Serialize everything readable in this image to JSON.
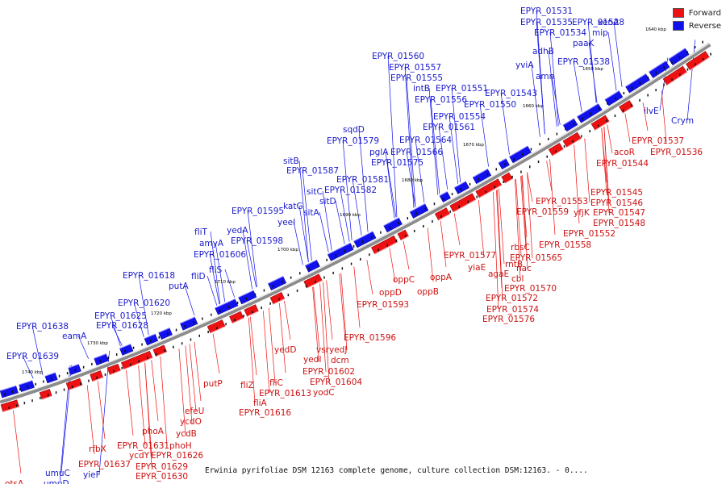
{
  "caption": "Erwinia pyrifoliae DSM 12163 complete genome, culture collection DSM:12163. - 0....",
  "legend": [
    {
      "label": "Forward",
      "color": "#ee1111"
    },
    {
      "label": "Reverse",
      "color": "#1111ee"
    }
  ],
  "colors": {
    "forward": "#ee1111",
    "reverse": "#1111ee",
    "backbone": "#8c8c8c"
  },
  "scale_ticks": [
    "1640 kbp",
    "1650 kbp",
    "1660 kbp",
    "1670 kbp",
    "1680 kbp",
    "1690 kbp",
    "1700 kbp",
    "1710 kbp",
    "1720 kbp",
    "1730 kbp",
    "1740 kbp"
  ],
  "reverse_genes": [
    "EPYR_01531",
    "EPYR_01535",
    "EPYR_01528",
    "xenA",
    "EPYR_01534",
    "mip",
    "paaK",
    "adhB",
    "yviA",
    "EPYR_01538",
    "amn",
    "EPYR_01560",
    "EPYR_01557",
    "EPYR_01555",
    "intB",
    "EPYR_01551",
    "EPYR_01556",
    "EPYR_01543",
    "EPYR_01550",
    "EPYR_01554",
    "EPYR_01561",
    "sqdD",
    "EPYR_01579",
    "EPYR_01564",
    "pglA",
    "EPYR_01566",
    "EPYR_01575",
    "sitB",
    "EPYR_01587",
    "EPYR_01581",
    "sitC",
    "EPYR_01582",
    "sitD",
    "katG",
    "EPYR_01595",
    "sitA",
    "yeeI",
    "fliT",
    "yedA",
    "amyA",
    "EPYR_01598",
    "EPYR_01606",
    "fliS",
    "fliD",
    "EPYR_01618",
    "putA",
    "EPYR_01620",
    "EPYR_01625",
    "EPYR_01638",
    "EPYR_01628",
    "eamA",
    "EPYR_01639",
    "ilvE",
    "Crym",
    "umuC",
    "umuD",
    "yieF"
  ],
  "forward_genes": [
    "EPYR_01537",
    "EPYR_01536",
    "acoR",
    "EPYR_01544",
    "EPYR_01545",
    "EPYR_01546",
    "EPYR_01553",
    "EPYR_01547",
    "EPYR_01559",
    "yfjK",
    "EPYR_01548",
    "EPYR_01552",
    "rbsC",
    "EPYR_01558",
    "EPYR_01565",
    "EPYR_01577",
    "rntB",
    "nac",
    "yiaE",
    "agaE",
    "cbl",
    "EPYR_01570",
    "EPYR_01572",
    "EPYR_01574",
    "EPYR_01576",
    "oppA",
    "oppC",
    "oppD",
    "oppB",
    "EPYR_01593",
    "EPYR_01596",
    "yedJ",
    "vsr",
    "dcm",
    "yedD",
    "yedI",
    "EPYR_01602",
    "EPYR_01604",
    "yodC",
    "fliC",
    "fliZ",
    "EPYR_01613",
    "fliA",
    "putP",
    "EPYR_01616",
    "efeU",
    "ycdO",
    "ycdB",
    "phoA",
    "phoH",
    "EPYR_01631",
    "ycdY",
    "EPYR_01626",
    "EPYR_01629",
    "EPYR_01630",
    "rfbX",
    "EPYR_01637",
    "otsA"
  ]
}
